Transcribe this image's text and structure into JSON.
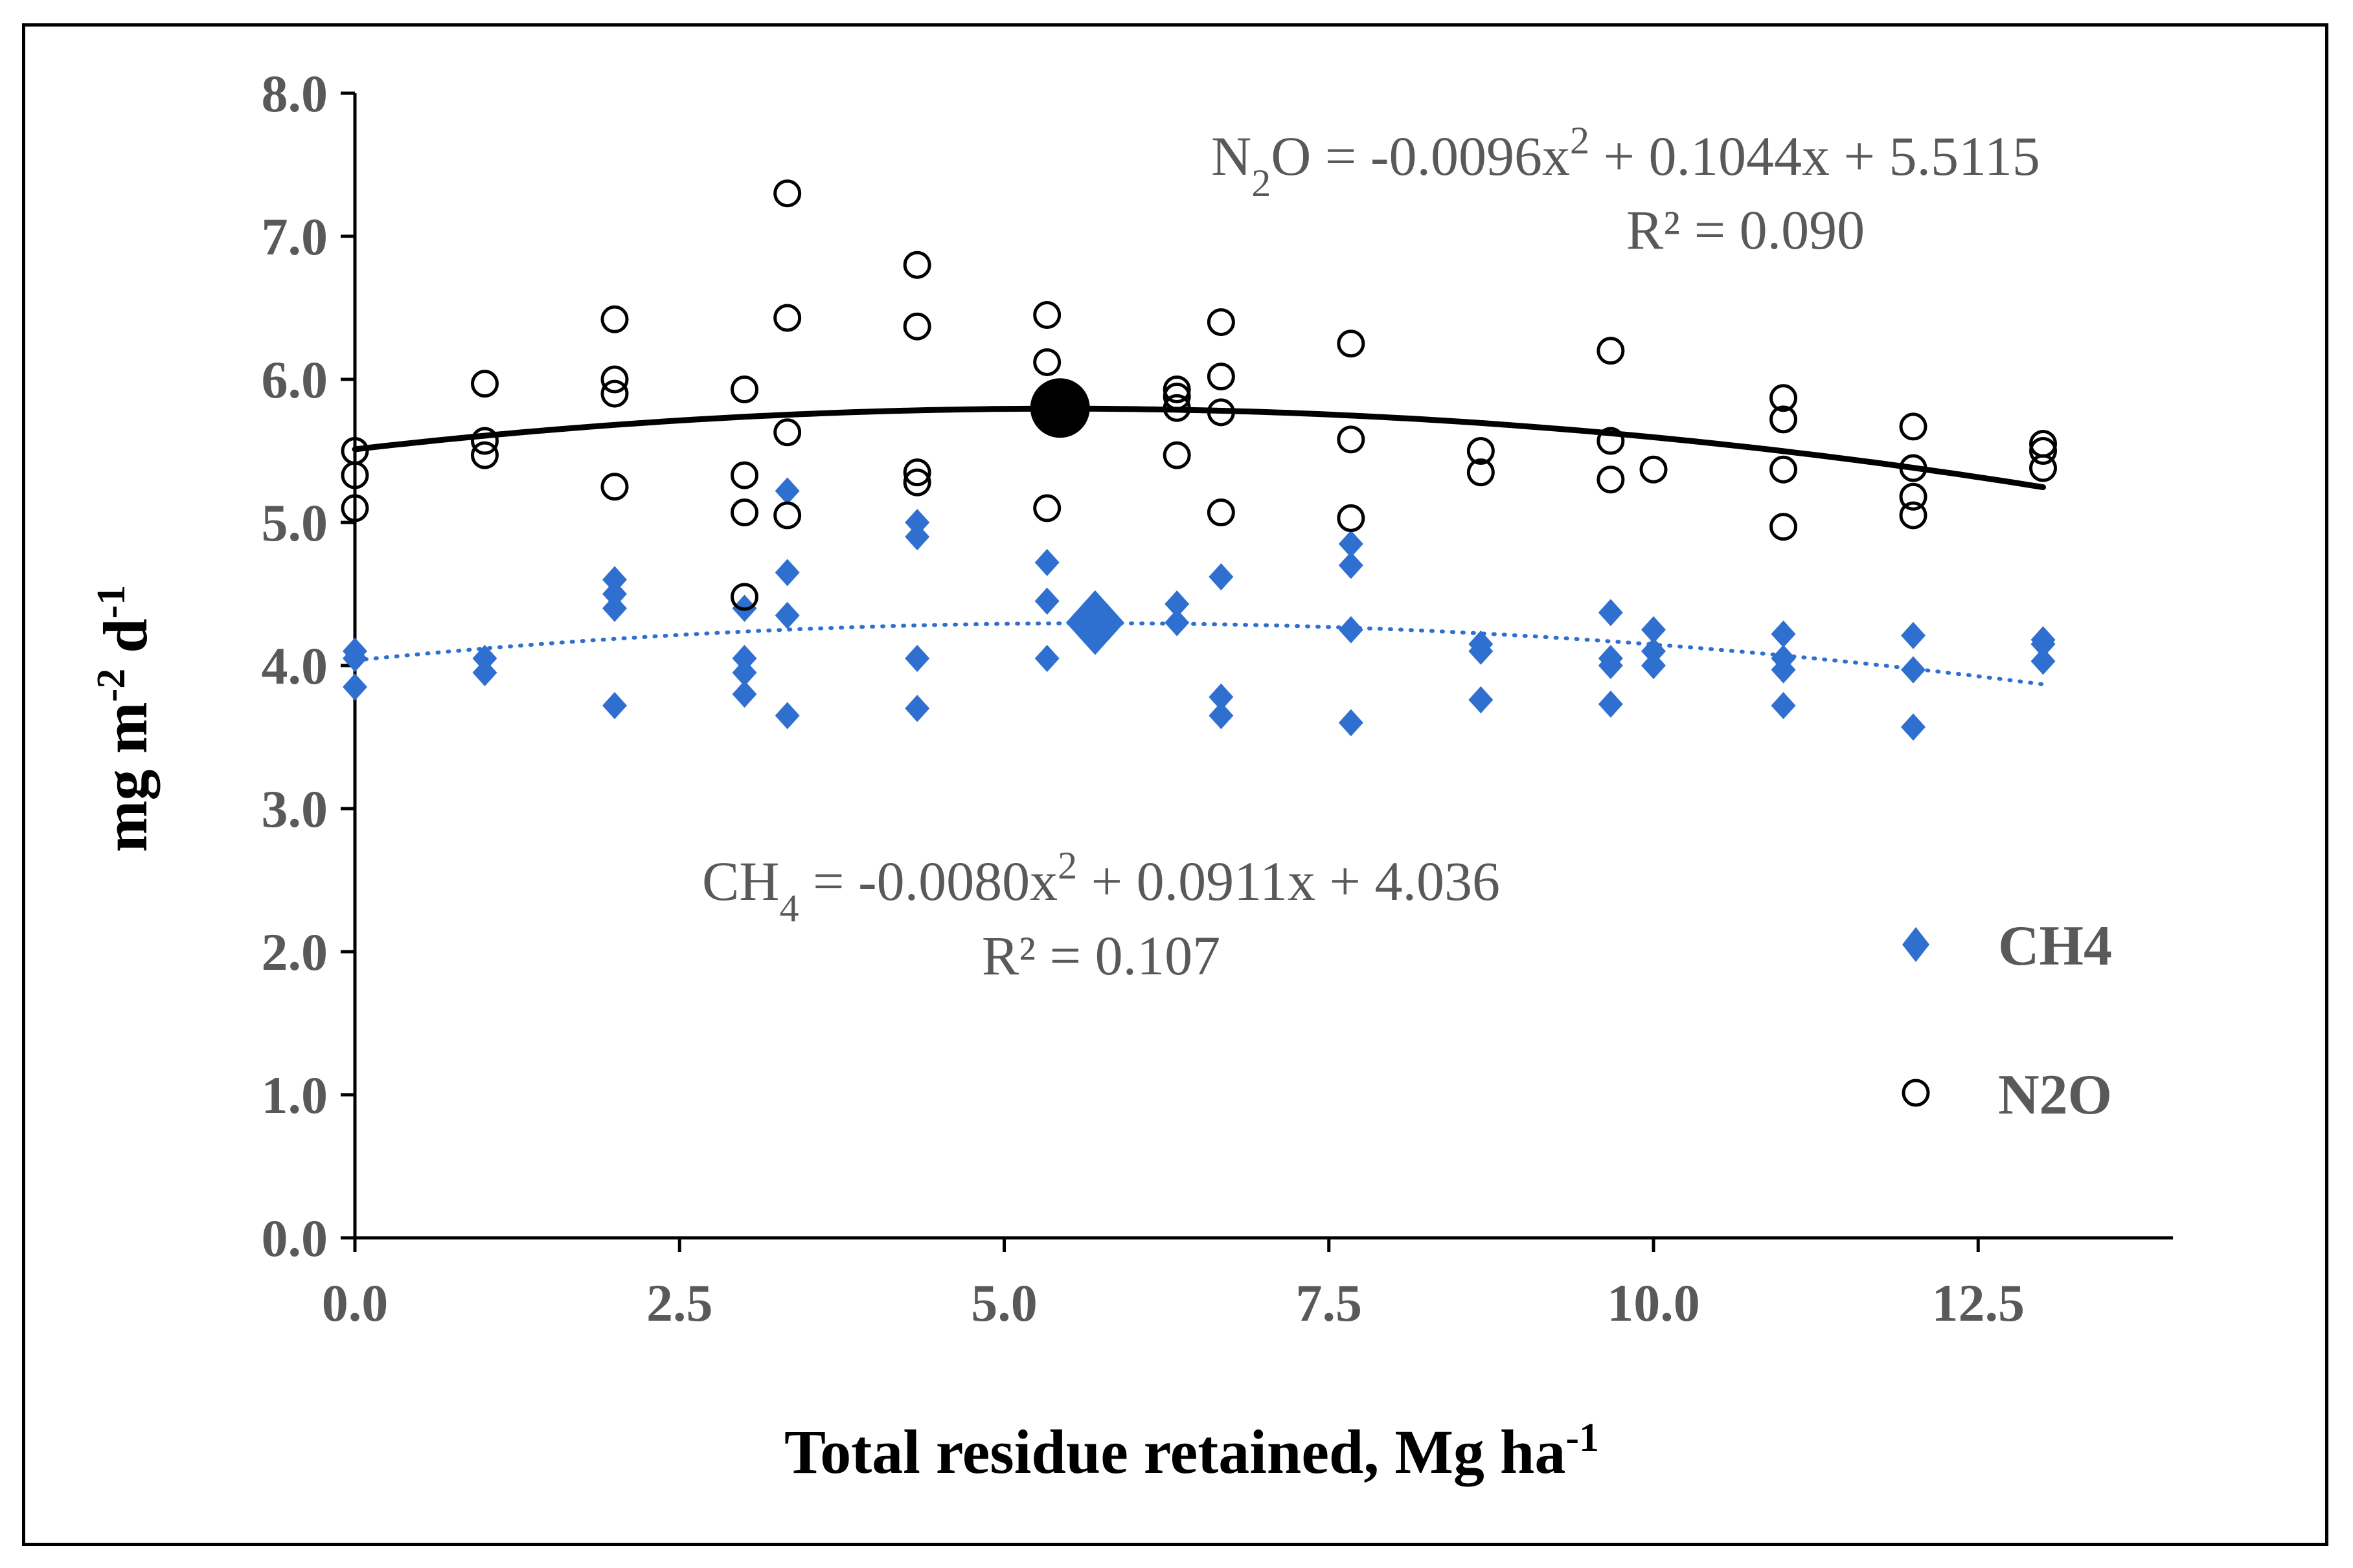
{
  "chart_data": {
    "type": "scatter",
    "xlabel": "Total residue retained, Mg ha",
    "xlabel_sup": "-1",
    "ylabel": {
      "base": "mg m",
      "sup1": "-2",
      "mid": " d",
      "sup2": "-1"
    },
    "xlim": [
      0,
      14
    ],
    "ylim": [
      0,
      8
    ],
    "xticks": [
      "0.0",
      "2.5",
      "5.0",
      "7.5",
      "10.0",
      "12.5"
    ],
    "xtick_values": [
      0,
      2.5,
      5,
      7.5,
      10,
      12.5
    ],
    "yticks": [
      "0.0",
      "1.0",
      "2.0",
      "3.0",
      "4.0",
      "5.0",
      "6.0",
      "7.0",
      "8.0"
    ],
    "ytick_values": [
      0,
      1,
      2,
      3,
      4,
      5,
      6,
      7,
      8
    ],
    "grid": false,
    "legend_position": "right",
    "colors": {
      "ch4": "#2E6FD0",
      "n2o": "#000000",
      "axis": "#000000",
      "text": "#595959"
    },
    "series": [
      {
        "name": "CH4",
        "marker": "diamond",
        "points": [
          [
            0,
            4.1
          ],
          [
            0,
            4.05
          ],
          [
            0,
            3.85
          ],
          [
            1,
            4.05
          ],
          [
            1,
            3.95
          ],
          [
            2,
            4.6
          ],
          [
            2,
            4.5
          ],
          [
            2,
            4.4
          ],
          [
            2,
            3.72
          ],
          [
            3,
            4.4
          ],
          [
            3,
            4.05
          ],
          [
            3,
            3.95
          ],
          [
            3,
            3.8
          ],
          [
            3.33,
            5.22
          ],
          [
            3.33,
            4.65
          ],
          [
            3.33,
            4.35
          ],
          [
            3.33,
            3.65
          ],
          [
            4.33,
            5.0
          ],
          [
            4.33,
            4.9
          ],
          [
            4.33,
            4.05
          ],
          [
            4.33,
            3.7
          ],
          [
            5.33,
            4.72
          ],
          [
            5.33,
            4.45
          ],
          [
            5.33,
            4.05
          ],
          [
            6.33,
            4.43
          ],
          [
            6.33,
            4.3
          ],
          [
            6.67,
            4.62
          ],
          [
            6.67,
            3.78
          ],
          [
            6.67,
            3.65
          ],
          [
            7.67,
            4.85
          ],
          [
            7.67,
            4.7
          ],
          [
            7.67,
            4.25
          ],
          [
            7.67,
            3.6
          ],
          [
            8.67,
            4.15
          ],
          [
            8.67,
            4.1
          ],
          [
            8.67,
            3.76
          ],
          [
            9.67,
            4.37
          ],
          [
            9.67,
            4.05
          ],
          [
            9.67,
            4.0
          ],
          [
            9.67,
            3.73
          ],
          [
            10,
            4.25
          ],
          [
            10,
            4.1
          ],
          [
            10,
            4.0
          ],
          [
            11,
            4.22
          ],
          [
            11,
            4.05
          ],
          [
            11,
            3.97
          ],
          [
            11,
            3.72
          ],
          [
            12,
            4.21
          ],
          [
            12,
            3.97
          ],
          [
            12,
            3.57
          ],
          [
            13,
            4.18
          ],
          [
            13,
            4.15
          ],
          [
            13,
            4.03
          ]
        ],
        "mean_point": [
          5.7,
          4.3
        ],
        "fit": {
          "a": -0.008,
          "b": 0.0911,
          "c": 4.036,
          "style": "dotted"
        },
        "equation": {
          "lhs_main": "CH",
          "lhs_sub": "4",
          "mid": " = -0.0080x",
          "sup": "2",
          "rest": " + 0.0911x + 4.036"
        },
        "r2": "R² = 0.107"
      },
      {
        "name": "N2O",
        "marker": "circle",
        "points": [
          [
            0,
            5.5
          ],
          [
            0,
            5.33
          ],
          [
            0,
            5.1
          ],
          [
            1,
            5.97
          ],
          [
            1,
            5.57
          ],
          [
            1,
            5.47
          ],
          [
            2,
            6.42
          ],
          [
            2,
            6.0
          ],
          [
            2,
            5.9
          ],
          [
            2,
            5.25
          ],
          [
            3,
            5.93
          ],
          [
            3,
            5.33
          ],
          [
            3,
            5.07
          ],
          [
            3,
            4.48
          ],
          [
            3.33,
            7.3
          ],
          [
            3.33,
            6.43
          ],
          [
            3.33,
            5.63
          ],
          [
            3.33,
            5.05
          ],
          [
            4.33,
            6.8
          ],
          [
            4.33,
            6.37
          ],
          [
            4.33,
            5.35
          ],
          [
            4.33,
            5.28
          ],
          [
            5.33,
            6.45
          ],
          [
            5.33,
            6.12
          ],
          [
            5.33,
            5.1
          ],
          [
            6.33,
            5.93
          ],
          [
            6.33,
            5.88
          ],
          [
            6.33,
            5.8
          ],
          [
            6.33,
            5.47
          ],
          [
            6.67,
            6.4
          ],
          [
            6.67,
            6.02
          ],
          [
            6.67,
            5.77
          ],
          [
            6.67,
            5.07
          ],
          [
            7.67,
            6.25
          ],
          [
            7.67,
            5.58
          ],
          [
            7.67,
            5.03
          ],
          [
            8.67,
            5.5
          ],
          [
            8.67,
            5.35
          ],
          [
            9.67,
            6.2
          ],
          [
            9.67,
            5.57
          ],
          [
            9.67,
            5.3
          ],
          [
            10,
            5.37
          ],
          [
            11,
            5.87
          ],
          [
            11,
            5.72
          ],
          [
            11,
            5.37
          ],
          [
            11,
            4.97
          ],
          [
            12,
            5.67
          ],
          [
            12,
            5.38
          ],
          [
            12,
            5.18
          ],
          [
            12,
            5.05
          ],
          [
            13,
            5.55
          ],
          [
            13,
            5.5
          ],
          [
            13,
            5.38
          ]
        ],
        "mean_point": [
          5.43,
          5.8
        ],
        "fit": {
          "a": -0.0096,
          "b": 0.1044,
          "c": 5.5115,
          "style": "solid"
        },
        "equation": {
          "lhs_main": "N",
          "lhs_sub": "2",
          "lhs_tail": "O",
          "mid": " = -0.0096x",
          "sup": "2",
          "rest": " + 0.1044x + 5.5115"
        },
        "r2": "R² = 0.090"
      }
    ]
  }
}
